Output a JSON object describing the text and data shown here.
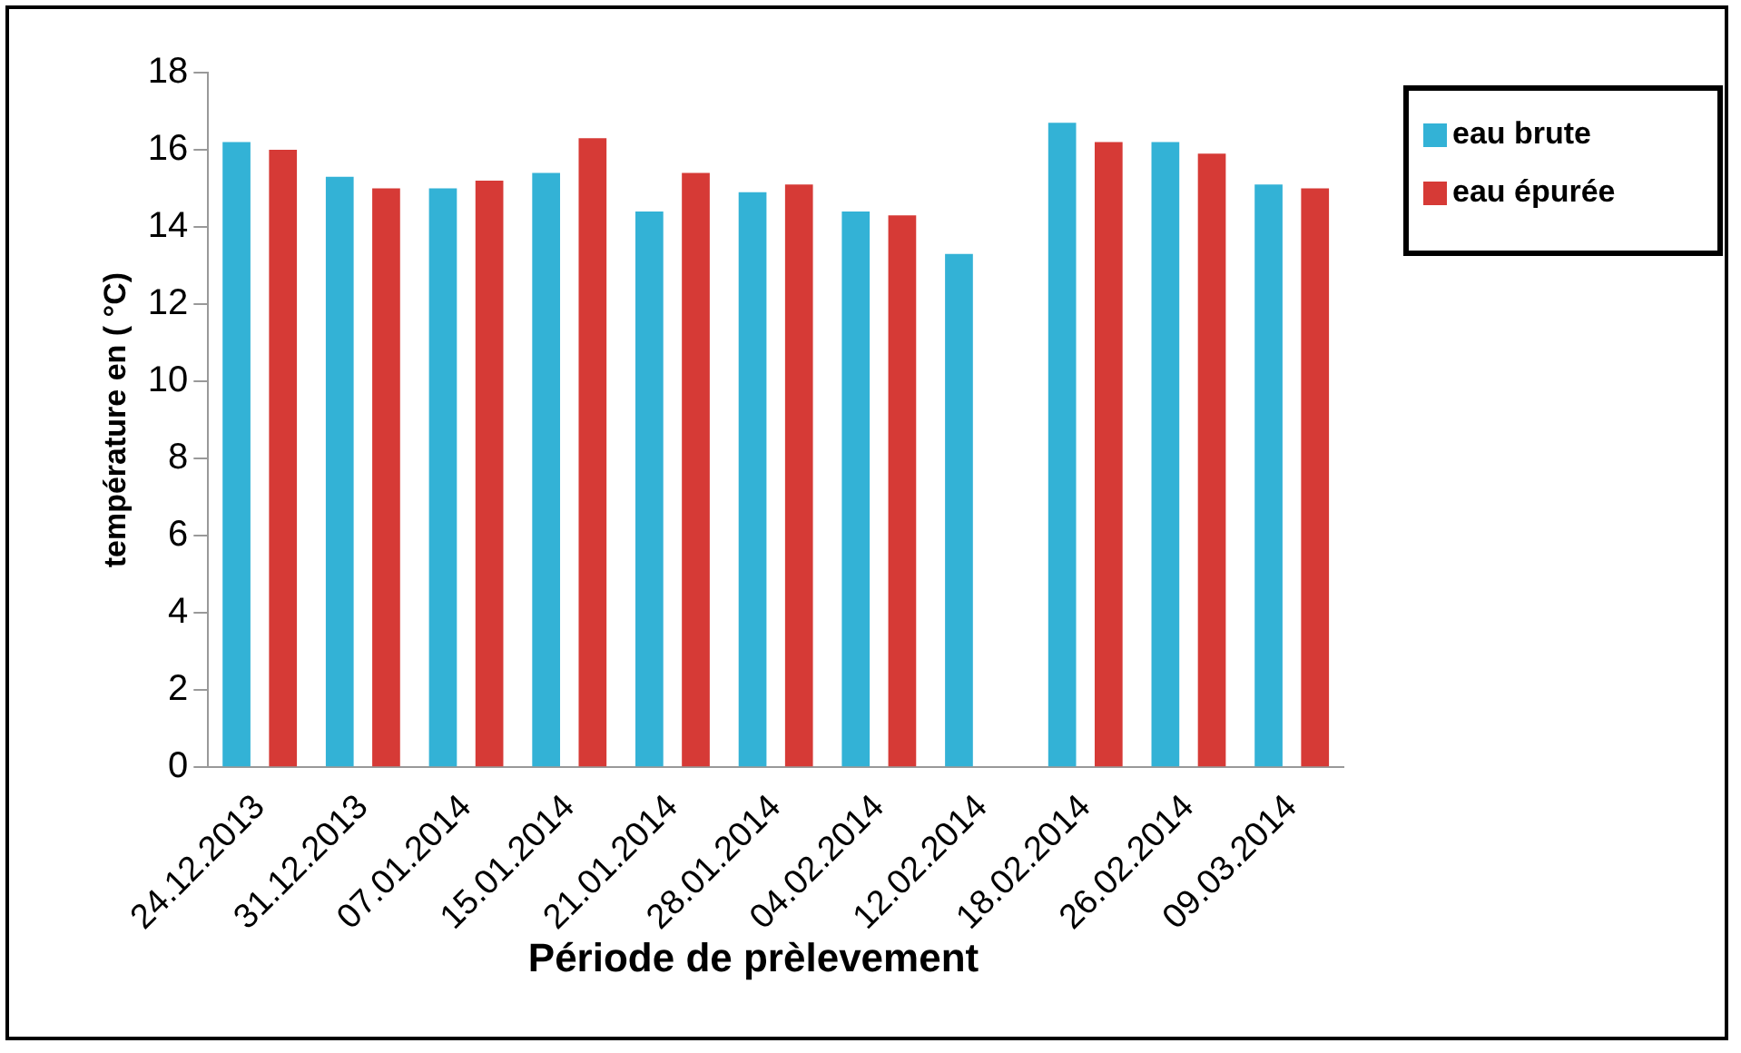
{
  "chart_data": {
    "type": "bar",
    "xlabel": "Période de prèlevement",
    "ylabel": "température en ( °C)",
    "categories": [
      "24.12.2013",
      "31.12.2013",
      "07.01.2014",
      "15.01.2014",
      "21.01.2014",
      "28.01.2014",
      "04.02.2014",
      "12.02.2014",
      "18.02.2014",
      "26.02.2014",
      "09.03.2014"
    ],
    "series": [
      {
        "name": "eau brute",
        "color": "#33b2d6",
        "values": [
          16.2,
          15.3,
          15.0,
          15.4,
          14.4,
          14.9,
          14.4,
          13.3,
          16.7,
          16.2,
          15.1
        ]
      },
      {
        "name": "eau épurée",
        "color": "#d63a36",
        "values": [
          16.0,
          15.0,
          15.2,
          16.3,
          15.4,
          15.1,
          14.3,
          null,
          16.2,
          15.9,
          15.0
        ]
      }
    ],
    "ylim": [
      0,
      18
    ],
    "yticks": [
      0,
      2,
      4,
      6,
      8,
      10,
      12,
      14,
      16,
      18
    ],
    "grid": false,
    "legend": "top right"
  }
}
